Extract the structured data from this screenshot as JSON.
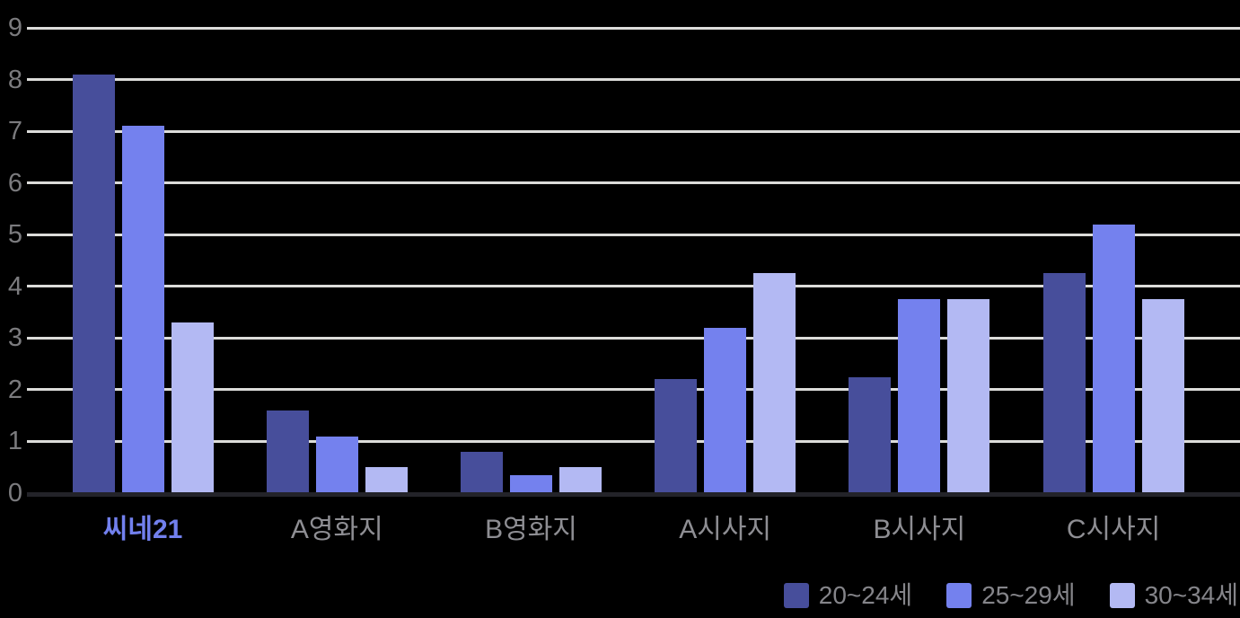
{
  "chart_data": {
    "type": "bar",
    "title": "",
    "xlabel": "",
    "ylabel": "",
    "categories": [
      "씨네21",
      "A영화지",
      "B영화지",
      "A시사지",
      "B시사지",
      "C시사지"
    ],
    "series": [
      {
        "name": "20~24세",
        "color": "#474E9B",
        "values": [
          8.1,
          1.6,
          0.8,
          2.2,
          2.25,
          4.25
        ]
      },
      {
        "name": "25~29세",
        "color": "#7481EE",
        "values": [
          7.1,
          1.1,
          0.35,
          3.2,
          3.75,
          5.2
        ]
      },
      {
        "name": "30~34세",
        "color": "#B3B9F3",
        "values": [
          3.3,
          0.5,
          0.5,
          4.25,
          3.75,
          3.75
        ]
      }
    ],
    "ylim": [
      0,
      9
    ],
    "ytick_step": 1,
    "yticks": [
      "0",
      "1",
      "2",
      "3",
      "4",
      "5",
      "6",
      "7",
      "8",
      "9"
    ],
    "grid": true,
    "legend_position": "bottom-right",
    "highlighted_category": "씨네21",
    "colors": {
      "background": "#000000",
      "gridline": "#DCDCDA",
      "axis_line": "#232329",
      "tick_label": "#7B7B7E",
      "category_label": "#8E8E93",
      "highlight_label": "#7280EE",
      "legend_label": "#85858A"
    }
  }
}
